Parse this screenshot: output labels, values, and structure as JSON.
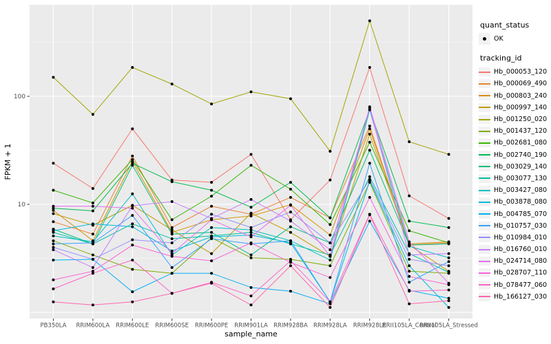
{
  "figure": {
    "panel_bg": "#EBEBEB",
    "grid_color": "#FFFFFF",
    "tick_color": "#333333",
    "axis_text_color": "#4D4D4D",
    "marker_color": "#000000"
  },
  "legend": {
    "quant_title": "quant_status",
    "quant_items": [
      {
        "label": "OK",
        "marker": "point",
        "color": "#000000"
      }
    ],
    "tracking_title": "tracking_id",
    "key_bg": "#F2F2F2"
  },
  "chart_data": {
    "type": "line",
    "xlabel": "sample_name",
    "ylabel": "FPKM + 1",
    "y_scale": "log10",
    "y_ticks": [
      "10",
      "100"
    ],
    "y_tick_values": [
      10,
      100
    ],
    "y_major_breaks": [
      1,
      10,
      100
    ],
    "y_minor_breaks": [
      3.1623,
      31.623,
      316.23
    ],
    "ylim_approx": [
      0.9,
      700
    ],
    "grid": true,
    "legend_position": "right",
    "marker": {
      "shape": "point",
      "color": "#000000"
    },
    "categories": [
      "PB350LA",
      "RRIM600LA",
      "RRIM600LE",
      "RRIM600SE",
      "RRIM600PE",
      "RRIM901LA",
      "RRIM928BA",
      "RRIM928LA",
      "RRIM928LE",
      "RRII105LA_Control",
      "RRII105LA_Stressed"
    ],
    "series": [
      {
        "name": "Hb_000053_120",
        "color": "#F8766D",
        "values": [
          24,
          14,
          50,
          16.8,
          16,
          29,
          7.2,
          16.8,
          185,
          12,
          7.4
        ]
      },
      {
        "name": "Hb_000069_490",
        "color": "#EA8331",
        "values": [
          6.9,
          5.3,
          28,
          6.1,
          9.6,
          8.1,
          11.6,
          7.5,
          53,
          4.2,
          4.4
        ]
      },
      {
        "name": "Hb_000803_240",
        "color": "#D89000",
        "values": [
          8.8,
          4.6,
          25,
          5.5,
          7.2,
          7.8,
          9.9,
          5.2,
          50,
          4.3,
          4.5
        ]
      },
      {
        "name": "Hb_000997_140",
        "color": "#C09B00",
        "values": [
          8.2,
          6.4,
          9.8,
          5.8,
          3.5,
          8.3,
          5.5,
          3.3,
          44.6,
          4.2,
          2.4
        ]
      },
      {
        "name": "Hb_001250_020",
        "color": "#A3A500",
        "values": [
          150,
          68,
          185,
          130,
          85,
          110,
          95,
          31,
          500,
          38,
          29
        ]
      },
      {
        "name": "Hb_001437_120",
        "color": "#7CAE00",
        "values": [
          4.6,
          3.4,
          2.5,
          2.3,
          4.9,
          3.2,
          3.1,
          2.7,
          16,
          2.4,
          2.3
        ]
      },
      {
        "name": "Hb_002681_080",
        "color": "#39B600",
        "values": [
          13.5,
          10.3,
          26,
          7.2,
          11.9,
          23,
          13.8,
          6.5,
          37.6,
          5.7,
          4.4
        ]
      },
      {
        "name": "Hb_002740_190",
        "color": "#00BB4E",
        "values": [
          9.2,
          8.7,
          24,
          16.2,
          13.5,
          9.4,
          16,
          7.5,
          75,
          7,
          6.1
        ]
      },
      {
        "name": "Hb_003029_140",
        "color": "#00BF7D",
        "values": [
          5.9,
          4.3,
          23,
          5.3,
          5.5,
          3.4,
          6.2,
          4.4,
          31.7,
          4.2,
          4.3
        ]
      },
      {
        "name": "Hb_003077_130",
        "color": "#00C1A3",
        "values": [
          5.5,
          4.3,
          6.6,
          4.8,
          5.1,
          5.5,
          4.3,
          3.4,
          18,
          3.5,
          2.35
        ]
      },
      {
        "name": "Hb_003427_080",
        "color": "#00BFC4",
        "values": [
          5.1,
          4.5,
          12.5,
          3.4,
          6.1,
          5.8,
          4.6,
          3.05,
          75,
          4.1,
          3.2
        ]
      },
      {
        "name": "Hb_003878_080",
        "color": "#00BAE0",
        "values": [
          5.7,
          6.6,
          6.2,
          3.7,
          5,
          5.2,
          4.4,
          1.25,
          16.5,
          2.7,
          1.11
        ]
      },
      {
        "name": "Hb_004785_070",
        "color": "#00B0F6",
        "values": [
          3.05,
          3.1,
          1.55,
          2.3,
          2.3,
          1.7,
          1.57,
          1.2,
          7,
          1.6,
          1.35
        ]
      },
      {
        "name": "Hb_010757_030",
        "color": "#35A2FF",
        "values": [
          4.3,
          4.4,
          7.9,
          2.6,
          4.8,
          4.3,
          4.6,
          1.25,
          24,
          1.9,
          2.95
        ]
      },
      {
        "name": "Hb_010984_010",
        "color": "#9590FF",
        "values": [
          4,
          3.1,
          4.7,
          4.4,
          8.1,
          6.1,
          8.5,
          4.4,
          17,
          3.1,
          2.7
        ]
      },
      {
        "name": "Hb_016760_010",
        "color": "#C77CFF",
        "values": [
          3.8,
          2.6,
          9.7,
          10.6,
          7.4,
          11.1,
          7,
          3.8,
          78,
          3.4,
          3.5
        ]
      },
      {
        "name": "Hb_024714_080",
        "color": "#E76BF3",
        "values": [
          9.6,
          9.6,
          9.2,
          3.5,
          7.2,
          5,
          9.8,
          3.3,
          80,
          4.5,
          1.86
        ]
      },
      {
        "name": "Hb_028707_110",
        "color": "#FA62DB",
        "values": [
          2,
          2.4,
          4.2,
          3.3,
          3,
          4.4,
          2.9,
          2.1,
          11.6,
          2.15,
          1.8
        ]
      },
      {
        "name": "Hb_078477_060",
        "color": "#FF61CC",
        "values": [
          1.65,
          2.3,
          3.05,
          1.5,
          1.9,
          1.42,
          3,
          1.25,
          8.1,
          1.57,
          1.61
        ]
      },
      {
        "name": "Hb_166127_030",
        "color": "#FF65AE",
        "values": [
          1.25,
          1.17,
          1.25,
          1.5,
          1.86,
          1.17,
          2.7,
          1.11,
          8,
          1.2,
          1.28
        ]
      }
    ]
  }
}
